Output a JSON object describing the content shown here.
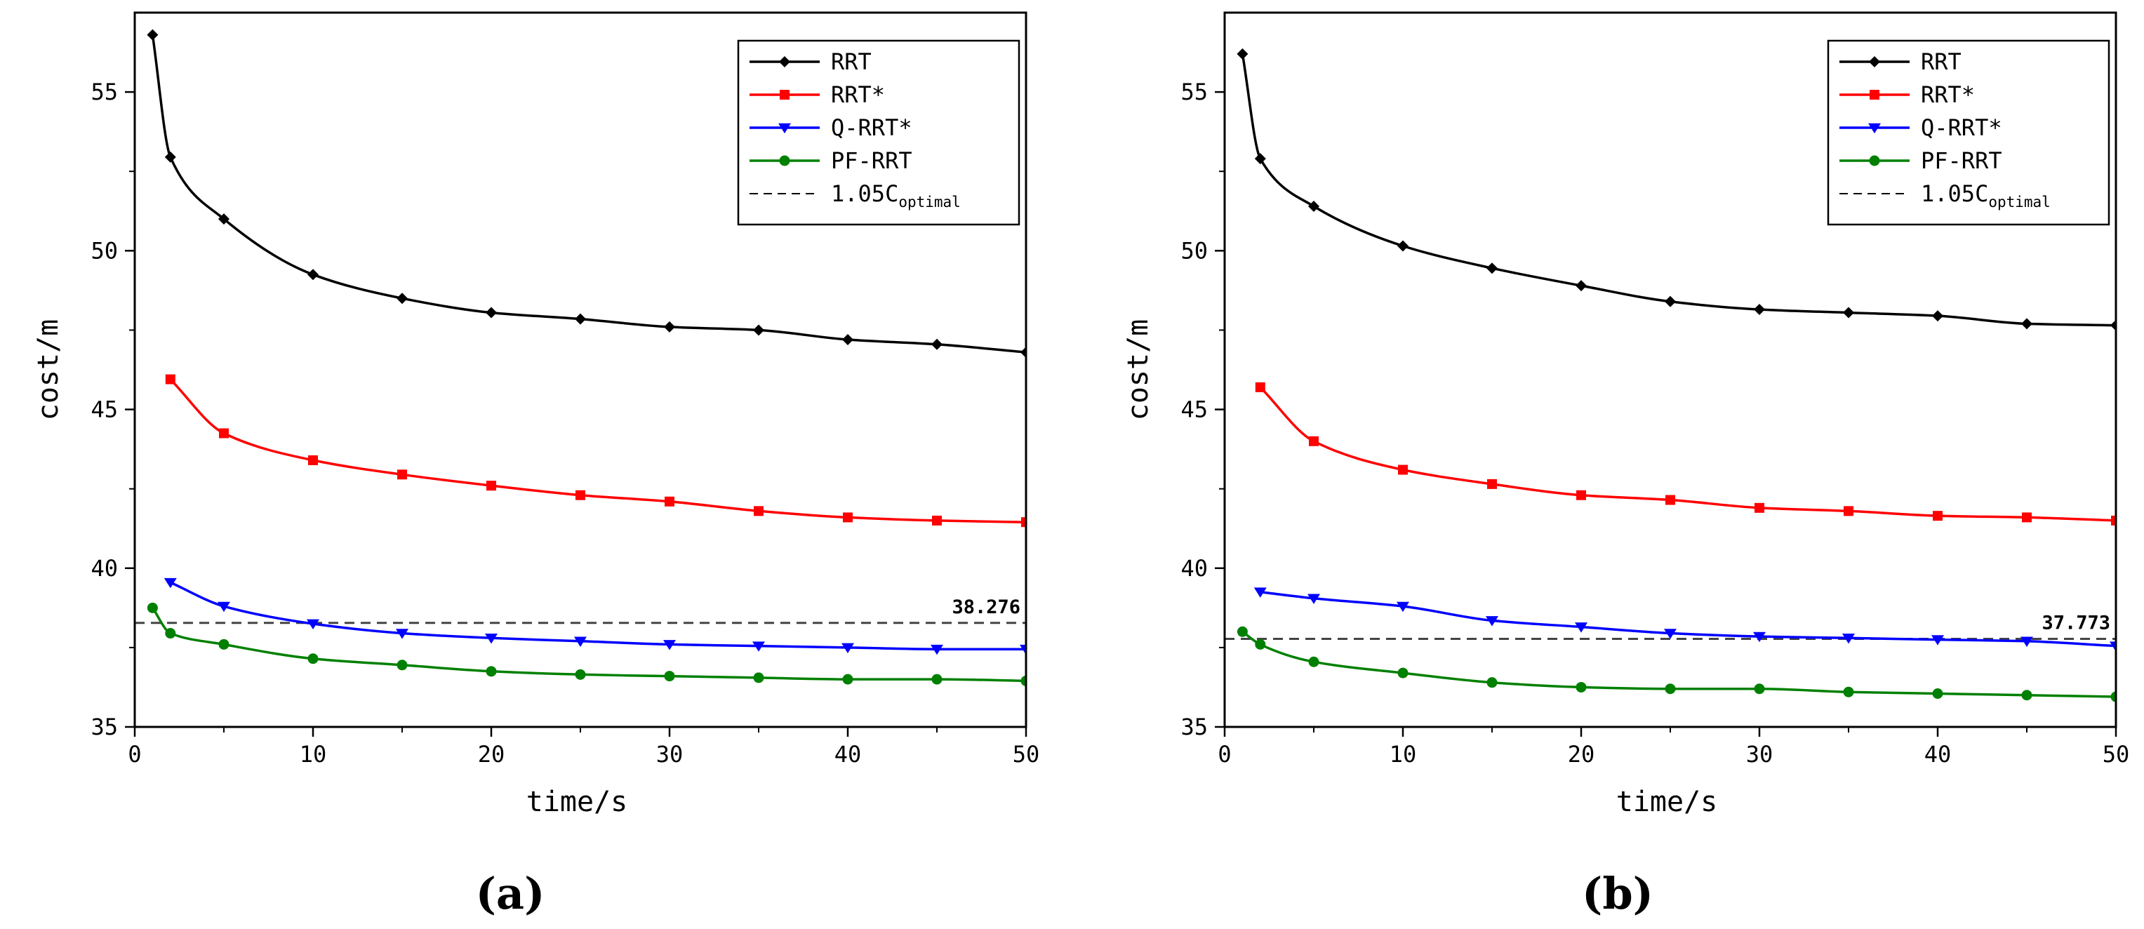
{
  "chart_data": [
    {
      "type": "line",
      "panel_label": "(a)",
      "xlabel": "time/s",
      "ylabel": "cost/m",
      "xlim": [
        0,
        50
      ],
      "ylim": [
        35,
        57.5
      ],
      "xticks": [
        0,
        10,
        20,
        30,
        40,
        50
      ],
      "yticks": [
        35,
        40,
        45,
        50,
        55
      ],
      "x": [
        1,
        2,
        5,
        10,
        15,
        20,
        25,
        30,
        35,
        40,
        45,
        50
      ],
      "series": [
        {
          "name": "RRT",
          "color": "#000000",
          "marker": "diamond",
          "x": [
            1,
            2,
            5,
            10,
            15,
            20,
            25,
            30,
            35,
            40,
            45,
            50
          ],
          "values": [
            56.8,
            52.95,
            51.0,
            49.25,
            48.5,
            48.05,
            47.85,
            47.6,
            47.5,
            47.2,
            47.05,
            46.8
          ]
        },
        {
          "name": "RRT*",
          "color": "#ff0000",
          "marker": "square",
          "x": [
            2,
            5,
            10,
            15,
            20,
            25,
            30,
            35,
            40,
            45,
            50
          ],
          "values": [
            45.95,
            44.25,
            43.4,
            42.95,
            42.6,
            42.3,
            42.1,
            41.8,
            41.6,
            41.5,
            41.45
          ]
        },
        {
          "name": "Q-RRT*",
          "color": "#0000ff",
          "marker": "triangle-down",
          "x": [
            2,
            5,
            10,
            15,
            20,
            25,
            30,
            35,
            40,
            45,
            50
          ],
          "values": [
            39.55,
            38.8,
            38.25,
            37.95,
            37.8,
            37.7,
            37.6,
            37.55,
            37.5,
            37.45,
            37.45
          ]
        },
        {
          "name": "PF-RRT",
          "color": "#008000",
          "marker": "circle",
          "x": [
            1,
            2,
            5,
            10,
            15,
            20,
            25,
            30,
            35,
            40,
            45,
            50
          ],
          "values": [
            38.75,
            37.95,
            37.6,
            37.15,
            36.95,
            36.75,
            36.65,
            36.6,
            36.55,
            36.5,
            36.5,
            36.45
          ]
        }
      ],
      "reference_line": {
        "legend_base": "1.05C",
        "legend_sub": "optimal",
        "value": 38.276,
        "label": "38.276"
      }
    },
    {
      "type": "line",
      "panel_label": "(b)",
      "xlabel": "time/s",
      "ylabel": "cost/m",
      "xlim": [
        0,
        50
      ],
      "ylim": [
        35,
        57.5
      ],
      "xticks": [
        0,
        10,
        20,
        30,
        40,
        50
      ],
      "yticks": [
        35,
        40,
        45,
        50,
        55
      ],
      "x": [
        1,
        2,
        5,
        10,
        15,
        20,
        25,
        30,
        35,
        40,
        45,
        50
      ],
      "series": [
        {
          "name": "RRT",
          "color": "#000000",
          "marker": "diamond",
          "x": [
            1,
            2,
            5,
            10,
            15,
            20,
            25,
            30,
            35,
            40,
            45,
            50
          ],
          "values": [
            56.2,
            52.9,
            51.4,
            50.15,
            49.45,
            48.9,
            48.4,
            48.15,
            48.05,
            47.95,
            47.7,
            47.65
          ]
        },
        {
          "name": "RRT*",
          "color": "#ff0000",
          "marker": "square",
          "x": [
            2,
            5,
            10,
            15,
            20,
            25,
            30,
            35,
            40,
            45,
            50
          ],
          "values": [
            45.7,
            44.0,
            43.1,
            42.65,
            42.3,
            42.15,
            41.9,
            41.8,
            41.65,
            41.6,
            41.5
          ]
        },
        {
          "name": "Q-RRT*",
          "color": "#0000ff",
          "marker": "triangle-down",
          "x": [
            2,
            5,
            10,
            15,
            20,
            25,
            30,
            35,
            40,
            45,
            50
          ],
          "values": [
            39.25,
            39.05,
            38.8,
            38.35,
            38.15,
            37.95,
            37.85,
            37.8,
            37.75,
            37.7,
            37.55
          ]
        },
        {
          "name": "PF-RRT",
          "color": "#008000",
          "marker": "circle",
          "x": [
            1,
            2,
            5,
            10,
            15,
            20,
            25,
            30,
            35,
            40,
            45,
            50
          ],
          "values": [
            38.0,
            37.6,
            37.05,
            36.7,
            36.4,
            36.25,
            36.2,
            36.2,
            36.1,
            36.05,
            36.0,
            35.95
          ]
        }
      ],
      "reference_line": {
        "legend_base": "1.05C",
        "legend_sub": "optimal",
        "value": 37.773,
        "label": "37.773"
      }
    }
  ]
}
